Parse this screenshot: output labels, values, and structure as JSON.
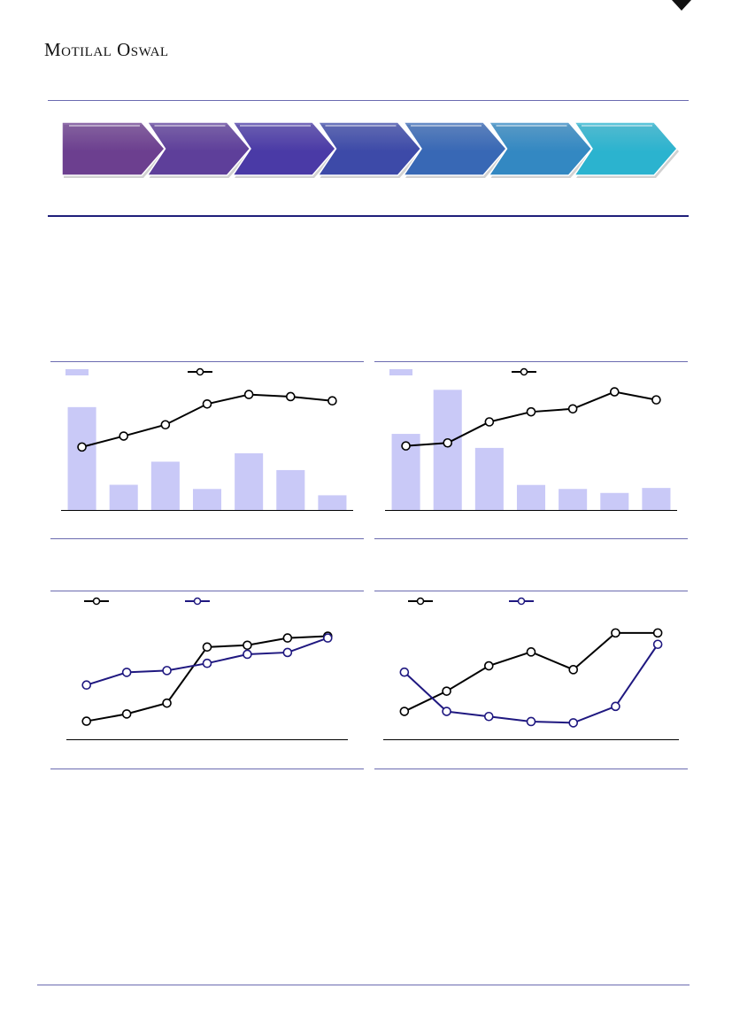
{
  "header": {
    "brand": "Motilal Oswal"
  },
  "process_flow": {
    "steps": [
      {
        "color": "#6c3f8f"
      },
      {
        "color": "#5e3f9a"
      },
      {
        "color": "#4a3aa6"
      },
      {
        "color": "#3d4aa8"
      },
      {
        "color": "#3868b5"
      },
      {
        "color": "#3388c2"
      },
      {
        "color": "#2bb3cf"
      }
    ]
  },
  "colors": {
    "bar": "#c9c9f7",
    "line_black": "#000000",
    "line_navy": "#1f1880",
    "rule": "#6b6bb0"
  },
  "chart_data": [
    {
      "type": "bar",
      "series": [
        {
          "kind": "bar",
          "values": [
            49,
            12,
            23,
            10,
            27,
            19,
            7
          ],
          "color": "#c9c9f7"
        },
        {
          "kind": "line",
          "values": [
            30,
            35.2,
            40.6,
            50.5,
            55,
            54,
            52
          ],
          "color": "#000000"
        }
      ],
      "categories": [
        "",
        "",
        "",
        "",
        "",
        "",
        ""
      ],
      "ylim": [
        0,
        62
      ],
      "legend": "top-left"
    },
    {
      "type": "bar",
      "series": [
        {
          "kind": "bar",
          "values": [
            38,
            60,
            31,
            12.5,
            10.5,
            8.5,
            11
          ],
          "color": "#c9c9f7"
        },
        {
          "kind": "line",
          "values": [
            32,
            33.5,
            44,
            49,
            50.5,
            59,
            55
          ],
          "color": "#000000"
        }
      ],
      "categories": [
        "",
        "",
        "",
        "",
        "",
        "",
        ""
      ],
      "ylim": [
        0,
        65
      ],
      "legend": "top-left"
    },
    {
      "type": "line",
      "series": [
        {
          "values": [
            10,
            14,
            20,
            51,
            52,
            56,
            57
          ],
          "color": "#000000"
        },
        {
          "values": [
            30,
            37,
            38,
            42,
            47,
            48,
            56
          ],
          "color": "#1f1880"
        }
      ],
      "categories": [
        "",
        "",
        "",
        "",
        "",
        "",
        ""
      ],
      "ylim": [
        0,
        70
      ],
      "legend": "top-left"
    },
    {
      "type": "line",
      "series": [
        {
          "values": [
            22,
            38,
            58,
            69,
            55,
            84,
            84
          ],
          "color": "#000000"
        },
        {
          "values": [
            53,
            22,
            18,
            14,
            13,
            26,
            75
          ],
          "color": "#1f1880"
        }
      ],
      "categories": [
        "",
        "",
        "",
        "",
        "",
        "",
        ""
      ],
      "ylim": [
        0,
        100
      ],
      "legend": "top-left"
    }
  ]
}
